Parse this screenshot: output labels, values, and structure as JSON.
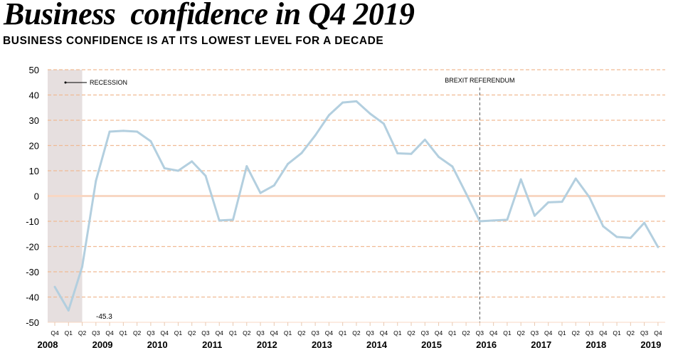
{
  "chart_data": {
    "type": "line",
    "title": "Business  confidence in Q4 2019",
    "subtitle": "BUSINESS CONFIDENCE IS AT ITS LOWEST LEVEL FOR A DECADE",
    "xlabel": "",
    "ylabel": "",
    "ylim": [
      -50,
      50
    ],
    "yticks": [
      "50",
      "40",
      "30",
      "20",
      "10",
      "0",
      "-10",
      "-20",
      "-30",
      "-40",
      "-50"
    ],
    "ytick_values": [
      50,
      40,
      30,
      20,
      10,
      0,
      -10,
      -20,
      -30,
      -40,
      -50
    ],
    "grid": true,
    "quarters": [
      "Q4",
      "Q1",
      "Q2",
      "Q3",
      "Q4",
      "Q1",
      "Q2",
      "Q3",
      "Q4",
      "Q1",
      "Q2",
      "Q3",
      "Q4",
      "Q1",
      "Q2",
      "Q3",
      "Q4",
      "Q1",
      "Q2",
      "Q3",
      "Q4",
      "Q1",
      "Q2",
      "Q3",
      "Q4",
      "Q1",
      "Q2",
      "Q3",
      "Q4",
      "Q1",
      "Q2",
      "Q3",
      "Q4",
      "Q1",
      "Q2",
      "Q3",
      "Q4",
      "Q1",
      "Q2",
      "Q3",
      "Q4",
      "Q1",
      "Q2",
      "Q3",
      "Q4"
    ],
    "years": [
      "2008",
      "2009",
      "2010",
      "2011",
      "2012",
      "2013",
      "2014",
      "2015",
      "2016",
      "2017",
      "2018",
      "2019"
    ],
    "series": [
      {
        "name": "Business confidence",
        "color": "#b3cfdf",
        "values": [
          -36,
          -45.3,
          -28,
          6,
          25.5,
          25.8,
          25.5,
          21.7,
          11,
          10,
          13.7,
          8,
          -9.7,
          -9.4,
          11.8,
          1.2,
          4.2,
          12.7,
          17,
          24,
          32,
          37,
          37.5,
          32.6,
          28.6,
          16.9,
          16.7,
          22.3,
          15.5,
          11.7,
          1,
          -10,
          -9.7,
          -9.4,
          6.6,
          -7.8,
          -2.5,
          -2.3,
          6.9,
          -0.5,
          -12,
          -16.2,
          -16.6,
          -10.6,
          -20.2
        ]
      }
    ],
    "annotations": {
      "recession_label": "RECESSION",
      "recession_span": [
        "Q4 2008",
        "Q2 2009"
      ],
      "brexit_label": "BREXIT REFERENDUM",
      "brexit_quarter": "Q3 2016",
      "min_label": "-45.3"
    },
    "colors": {
      "grid": "#f0bb94",
      "zero": "#f8d7c3",
      "recession": "#e6dfdf",
      "line": "#b3cfdf"
    }
  }
}
